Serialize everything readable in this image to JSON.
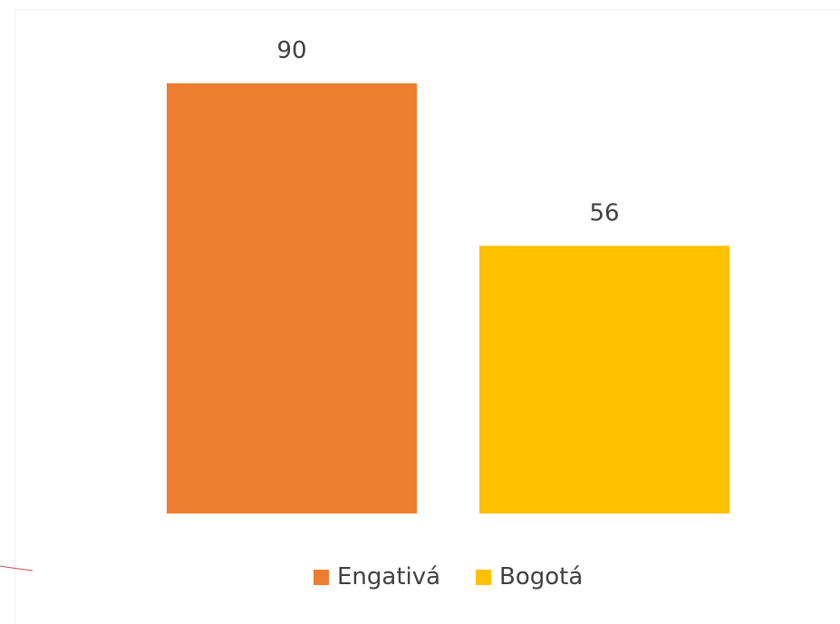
{
  "chart_data": {
    "type": "bar",
    "categories": [
      "Engativá",
      "Bogotá"
    ],
    "values": [
      90,
      56
    ],
    "colors": [
      "#ED7D31",
      "#FFC000"
    ],
    "data_labels": [
      "90",
      "56"
    ],
    "legend": {
      "placement": "bottom",
      "entries": [
        "Engativá",
        "Bogotá"
      ]
    },
    "title": "",
    "xlabel": "",
    "ylabel": "",
    "ylim": [
      0,
      90
    ],
    "grid": false
  }
}
